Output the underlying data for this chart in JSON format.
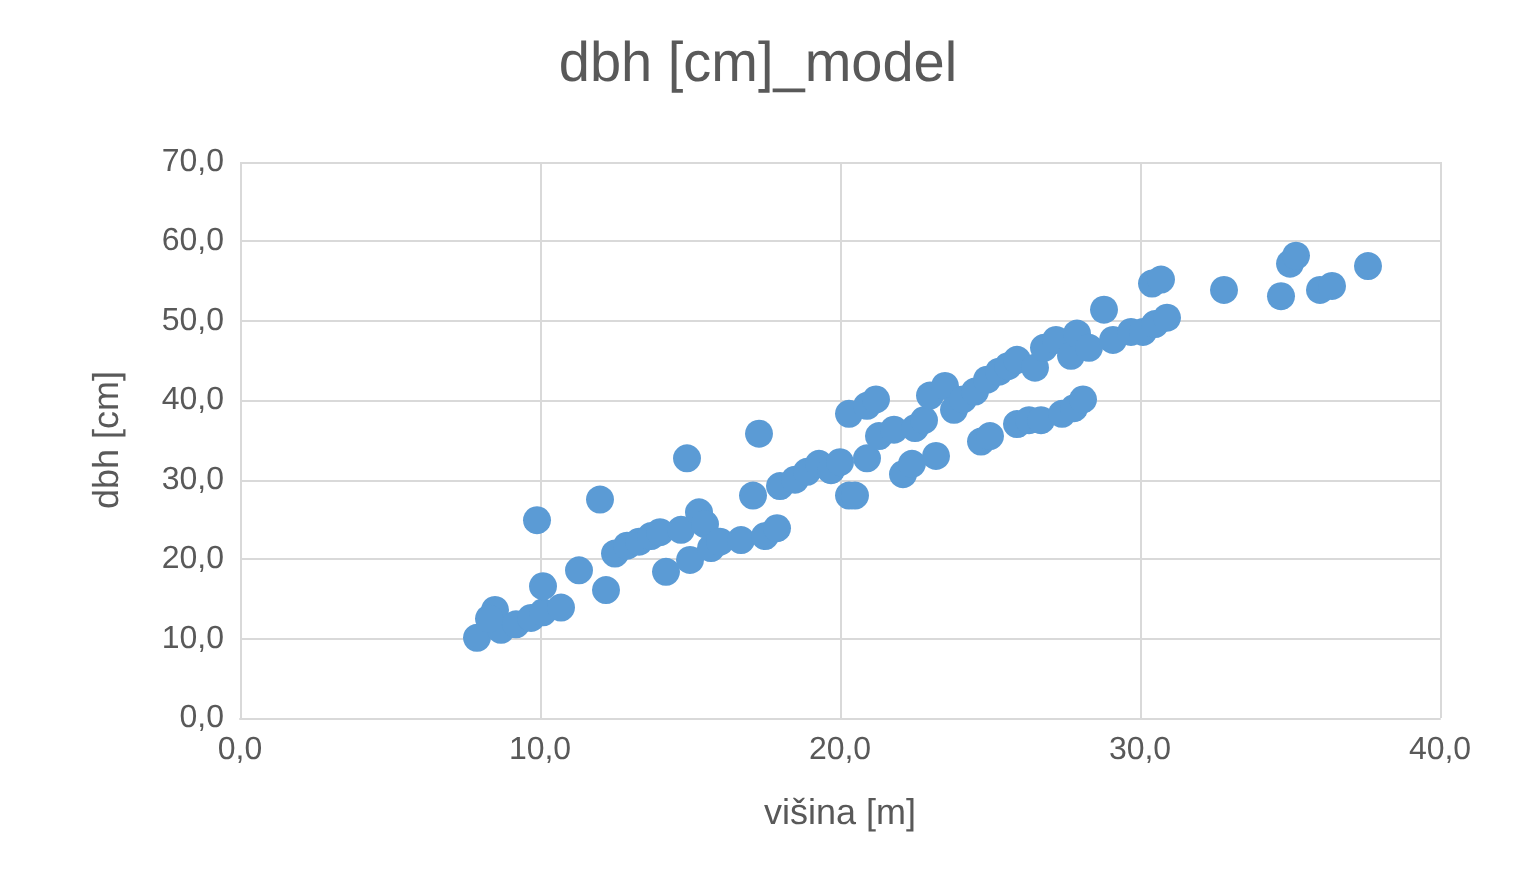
{
  "chart_data": {
    "type": "scatter",
    "title": "dbh [cm]_model",
    "xlabel": "višina [m]",
    "ylabel": "dbh [cm]",
    "color": "#5b9bd5",
    "marker": "circle",
    "grid": true,
    "xlim": [
      0,
      40
    ],
    "xticks": [
      {
        "value": 0,
        "label": "0,0"
      },
      {
        "value": 10,
        "label": "10,0"
      },
      {
        "value": 20,
        "label": "20,0"
      },
      {
        "value": 30,
        "label": "30,0"
      },
      {
        "value": 40,
        "label": "40,0"
      }
    ],
    "ylim": [
      0,
      70
    ],
    "yticks": [
      {
        "value": 0,
        "label": "0,0"
      },
      {
        "value": 10,
        "label": "10,0"
      },
      {
        "value": 20,
        "label": "20,0"
      },
      {
        "value": 30,
        "label": "30,0"
      },
      {
        "value": 40,
        "label": "40,0"
      },
      {
        "value": 50,
        "label": "50,0"
      },
      {
        "value": 60,
        "label": "60,0"
      },
      {
        "value": 70,
        "label": "70,0"
      }
    ],
    "x": [
      7.9,
      8.5,
      8.7,
      9.2,
      9.7,
      10.1,
      10.7,
      8.3,
      9.9,
      10.1,
      11.3,
      12.0,
      12.2,
      12.5,
      12.9,
      13.3,
      13.7,
      14.0,
      14.2,
      14.7,
      14.9,
      15.0,
      15.3,
      15.5,
      15.7,
      16.0,
      16.7,
      17.1,
      17.3,
      17.5,
      17.9,
      18.0,
      18.5,
      18.9,
      19.3,
      19.7,
      20.0,
      20.3,
      20.5,
      20.3,
      20.9,
      21.2,
      20.9,
      21.3,
      21.8,
      22.1,
      22.4,
      22.5,
      22.8,
      23.2,
      23.0,
      23.5,
      23.8,
      24.1,
      24.5,
      24.7,
      25.0,
      24.9,
      25.3,
      25.6,
      25.9,
      25.9,
      26.3,
      26.7,
      26.5,
      26.8,
      27.2,
      27.4,
      27.8,
      28.1,
      27.7,
      27.9,
      28.3,
      28.8,
      29.1,
      29.7,
      30.1,
      30.5,
      30.4,
      30.7,
      30.9,
      32.8,
      34.7,
      35.0,
      35.2,
      36.0,
      36.4,
      37.6
    ],
    "values": [
      10.1,
      13.6,
      11.1,
      11.8,
      12.6,
      13.3,
      13.9,
      12.5,
      24.9,
      16.6,
      18.6,
      27.5,
      16.1,
      20.7,
      21.7,
      22.2,
      22.9,
      23.4,
      18.4,
      23.7,
      32.7,
      19.9,
      25.9,
      24.4,
      21.4,
      22.2,
      22.4,
      28.0,
      35.8,
      22.9,
      23.9,
      29.2,
      30.0,
      31.0,
      32.0,
      31.2,
      32.2,
      28.0,
      28.0,
      38.3,
      39.3,
      40.1,
      32.7,
      35.5,
      36.3,
      30.7,
      32.0,
      36.5,
      37.5,
      33.0,
      40.6,
      41.8,
      38.8,
      40.1,
      41.1,
      34.8,
      35.5,
      42.6,
      43.6,
      44.3,
      45.1,
      37.0,
      37.5,
      37.5,
      44.1,
      46.6,
      47.6,
      38.3,
      39.0,
      40.1,
      45.6,
      48.4,
      46.6,
      51.4,
      47.6,
      48.6,
      48.6,
      49.6,
      54.7,
      55.2,
      50.4,
      53.9,
      53.1,
      57.2,
      58.2,
      53.9,
      54.4,
      56.9
    ]
  }
}
